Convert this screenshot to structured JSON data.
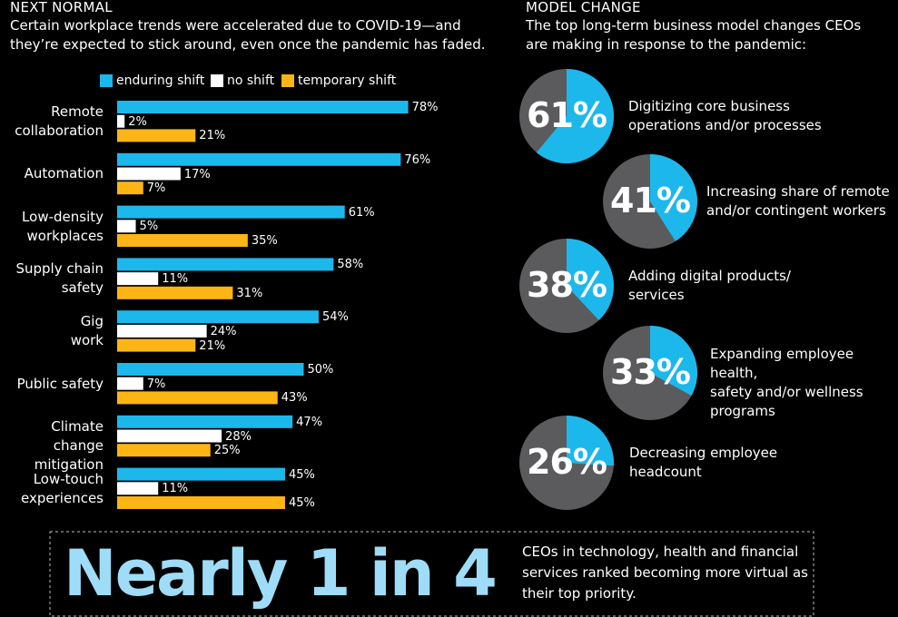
{
  "left_header": {
    "title": "NEXT NORMAL",
    "subtitle": "Certain workplace trends were accelerated due to COVID-19—and\nthey’re expected to stick around, even once the pandemic has faded."
  },
  "right_header": {
    "title": "MODEL CHANGE",
    "subtitle": "The top long-term business model changes CEOs\nare making in response to the pandemic:"
  },
  "callout": {
    "headline": "Nearly 1 in 4",
    "text": "CEOs in technology, health and financial\nservices ranked becoming more virtual as\ntheir top priority."
  },
  "chart_data": [
    {
      "type": "bar",
      "orientation": "horizontal",
      "categories": [
        "Remote\ncollaboration",
        "Automation",
        "Low-density\nworkplaces",
        "Supply chain\nsafety",
        "Gig\nwork",
        "Public safety",
        "Climate change\nmitigation",
        "Low-touch\nexperiences"
      ],
      "xlim": [
        0,
        100
      ],
      "series": [
        {
          "name": "enduring shift",
          "color": "#1cb8ec",
          "values": [
            78,
            76,
            61,
            58,
            54,
            50,
            47,
            45
          ],
          "value_labels": [
            "78%",
            "76%",
            "61%",
            "58%",
            "54%",
            "50%",
            "47%",
            "45%"
          ]
        },
        {
          "name": "no shift",
          "color": "#ffffff",
          "values": [
            2,
            17,
            5,
            11,
            24,
            7,
            28,
            11
          ],
          "value_labels": [
            "2%",
            "17%",
            "5%",
            "11%",
            "24%",
            "7%",
            "28%",
            "11%"
          ]
        },
        {
          "name": "temporary shift",
          "color": "#fdb515",
          "values": [
            21,
            7,
            35,
            31,
            21,
            43,
            25,
            45
          ],
          "value_labels": [
            "21%",
            "7%",
            "35%",
            "31%",
            "21%",
            "43%",
            "25%",
            "45%"
          ]
        }
      ],
      "legend": "top"
    },
    {
      "type": "pie",
      "categories": [
        "Digitizing core business\noperations and/or processes"
      ],
      "values": [
        61
      ],
      "value_labels": [
        "61%"
      ],
      "color": "#1cb8ec",
      "rest_color": "#5b5b5d"
    },
    {
      "type": "pie",
      "categories": [
        "Increasing share of remote\nand/or contingent workers"
      ],
      "values": [
        41
      ],
      "value_labels": [
        "41%"
      ],
      "color": "#1cb8ec",
      "rest_color": "#5b5b5d"
    },
    {
      "type": "pie",
      "categories": [
        "Adding digital products/\nservices"
      ],
      "values": [
        38
      ],
      "value_labels": [
        "38%"
      ],
      "color": "#1cb8ec",
      "rest_color": "#5b5b5d"
    },
    {
      "type": "pie",
      "categories": [
        "Expanding employee health,\nsafety and/or wellness\nprograms"
      ],
      "values": [
        33
      ],
      "value_labels": [
        "33%"
      ],
      "color": "#1cb8ec",
      "rest_color": "#5b5b5d"
    },
    {
      "type": "pie",
      "categories": [
        "Decreasing employee\nheadcount"
      ],
      "values": [
        26
      ],
      "value_labels": [
        "26%"
      ],
      "color": "#1cb8ec",
      "rest_color": "#5b5b5d"
    }
  ]
}
